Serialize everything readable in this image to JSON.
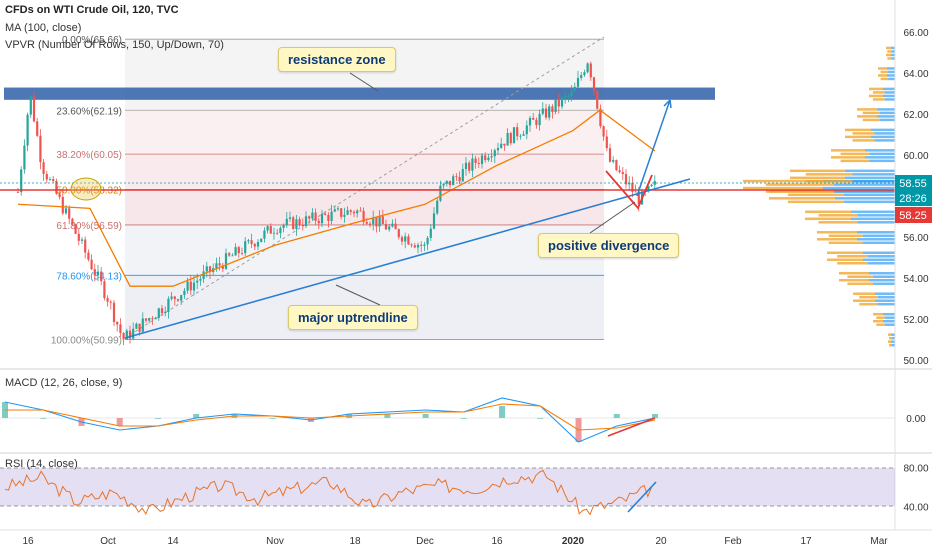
{
  "header": {
    "title": "CFDs on WTI Crude Oil, 120, TVC",
    "ma": "MA (100, close)",
    "vpvr": "VPVR (Number Of Rows, 150, Up/Down, 70)"
  },
  "annotations": {
    "resistance": "resistance zone",
    "divergence": "positive divergence",
    "uptrend": "major uptrendline"
  },
  "price_badges": {
    "last": "58.55",
    "countdown": "28:26",
    "ma_value": "58.25"
  },
  "panes": {
    "macd_label": "MACD (12, 26, close, 9)",
    "rsi_label": "RSI (14, close)"
  },
  "colors": {
    "resistance": "#2f5fa8",
    "uptrend": "#2a7fd4",
    "candle_up": "#26a69a",
    "candle_down": "#ef5350",
    "ma": "#f57c00",
    "vp_buy": "#2196f3",
    "vp_sell": "#f0a020",
    "rsi": "#e8742a",
    "macd": "#2196f3",
    "signal": "#f57c00",
    "price_badge": "#0097a7",
    "ma_badge": "#e53935"
  },
  "chart_data": [
    {
      "type": "candlestick",
      "title": "CFDs on WTI Crude Oil, 120, TVC",
      "x_ticks": [
        "16",
        "Oct",
        "14",
        "Nov",
        "18",
        "Dec",
        "16",
        "2020",
        "20",
        "Feb",
        "17",
        "Mar"
      ],
      "y_ticks": [
        "66.00",
        "64.00",
        "62.00",
        "60.00",
        "56.00",
        "54.00",
        "52.00",
        "50.00"
      ],
      "ylim": [
        49.8,
        66.5
      ],
      "price_path": [
        [
          "16",
          58.2
        ],
        [
          "16",
          63.0
        ],
        [
          "16",
          59.5
        ],
        [
          "Oct",
          53.0
        ],
        [
          "Oct",
          51.0
        ],
        [
          "14",
          53.0
        ],
        [
          "14",
          54.0
        ],
        [
          "Nov",
          56.5
        ],
        [
          "18",
          57.3
        ],
        [
          "Dec",
          55.5
        ],
        [
          "Dec",
          58.3
        ],
        [
          "16",
          60.5
        ],
        [
          "16",
          61.5
        ],
        [
          "2020",
          63.0
        ],
        [
          "2020",
          64.7
        ],
        [
          "2020",
          62.3
        ],
        [
          "2020",
          59.8
        ],
        [
          "20",
          57.8
        ],
        [
          "20",
          58.5
        ]
      ],
      "moving_average_100": [
        [
          "16",
          57.6
        ],
        [
          "Oct",
          57.4
        ],
        [
          "Oct",
          53.6
        ],
        [
          "14",
          53.6
        ],
        [
          "Nov",
          55.6
        ],
        [
          "18",
          56.7
        ],
        [
          "Dec",
          57.6
        ],
        [
          "16",
          59.5
        ],
        [
          "2020",
          61.2
        ],
        [
          "2020",
          62.2
        ],
        [
          "20",
          60.2
        ]
      ],
      "fibonacci_levels": [
        {
          "label": "0.00%(65.66)",
          "value": 65.66
        },
        {
          "label": "23.60%(62.19)",
          "value": 62.19
        },
        {
          "label": "38.20%(60.05)",
          "value": 60.05
        },
        {
          "label": "50.00%(58.32)",
          "value": 58.32
        },
        {
          "label": "61.80%(56.59)",
          "value": 56.59
        },
        {
          "label": "78.60%(54.13)",
          "value": 54.13
        },
        {
          "label": "100.00%(50.99)",
          "value": 50.99
        }
      ],
      "resistance_zone": [
        62.7,
        63.3
      ],
      "uptrend_line": [
        [
          "Oct",
          51.0
        ],
        [
          "20",
          58.7
        ]
      ],
      "volume_profile": {
        "price_levels": [
          51.0,
          52.0,
          53.0,
          54.0,
          55.0,
          56.0,
          57.0,
          58.0,
          58.5,
          59.0,
          60.0,
          61.0,
          62.0,
          63.0,
          64.0,
          65.0
        ],
        "buy_volume": [
          4,
          12,
          20,
          26,
          32,
          38,
          44,
          60,
          72,
          50,
          30,
          24,
          18,
          12,
          8,
          4
        ],
        "sell_volume": [
          3,
          10,
          22,
          30,
          36,
          40,
          46,
          66,
          80,
          55,
          34,
          26,
          20,
          14,
          9,
          5
        ]
      },
      "badges": [
        "58.55",
        "28:26",
        "58.25"
      ]
    },
    {
      "type": "line",
      "title": "MACD (12, 26, close, 9)",
      "y_ticks": [
        "0.00"
      ],
      "series": [
        {
          "name": "MACD",
          "values": [
            0.4,
            0.2,
            -0.1,
            -0.3,
            -0.2,
            0.0,
            0.1,
            0.05,
            -0.05,
            0.1,
            0.15,
            0.2,
            0.15,
            0.5,
            0.3,
            -0.6,
            -0.2,
            0.0
          ]
        },
        {
          "name": "Signal",
          "values": [
            0.2,
            0.2,
            0.0,
            -0.2,
            -0.2,
            -0.05,
            0.05,
            0.05,
            0.0,
            0.05,
            0.1,
            0.15,
            0.15,
            0.35,
            0.3,
            -0.3,
            -0.25,
            -0.05
          ]
        }
      ]
    },
    {
      "type": "line",
      "title": "RSI (14, close)",
      "y_ticks": [
        "80.00",
        "40.00"
      ],
      "ylim": [
        20,
        90
      ],
      "series": [
        {
          "name": "RSI",
          "values": [
            60,
            70,
            45,
            55,
            35,
            50,
            62,
            48,
            58,
            66,
            40,
            55,
            62,
            58,
            70,
            72,
            35,
            45,
            60
          ]
        }
      ]
    }
  ]
}
